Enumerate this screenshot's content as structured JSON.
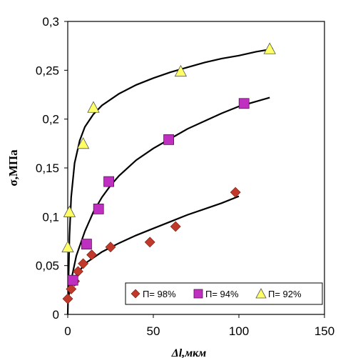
{
  "chart_data": {
    "type": "scatter",
    "title": "",
    "xlabel": "Δl,мкм",
    "ylabel": "σ,МПа",
    "xlim": [
      0,
      150
    ],
    "ylim": [
      0,
      0.3
    ],
    "x_ticks": [
      "0",
      "50",
      "100",
      "150"
    ],
    "y_ticks": [
      "0",
      "0,05",
      "0,1",
      "0,15",
      "0,2",
      "0,25",
      "0,3"
    ],
    "grid": false,
    "legend_position": "bottom-right",
    "series": [
      {
        "name": "П= 98%",
        "marker": "diamond",
        "color": "#c0392b",
        "points": [
          [
            0,
            0.016
          ],
          [
            2,
            0.026
          ],
          [
            4,
            0.034
          ],
          [
            6,
            0.044
          ],
          [
            9,
            0.052
          ],
          [
            14,
            0.061
          ],
          [
            25,
            0.069
          ],
          [
            48,
            0.074
          ],
          [
            63,
            0.09
          ],
          [
            98,
            0.125
          ]
        ],
        "trend": [
          [
            0,
            0.015
          ],
          [
            2,
            0.03
          ],
          [
            5,
            0.04
          ],
          [
            10,
            0.052
          ],
          [
            20,
            0.064
          ],
          [
            30,
            0.073
          ],
          [
            40,
            0.081
          ],
          [
            50,
            0.088
          ],
          [
            60,
            0.095
          ],
          [
            70,
            0.102
          ],
          [
            80,
            0.108
          ],
          [
            90,
            0.114
          ],
          [
            100,
            0.121
          ]
        ]
      },
      {
        "name": "П= 94%",
        "marker": "square",
        "color": "#c030c0",
        "points": [
          [
            3,
            0.035
          ],
          [
            11,
            0.072
          ],
          [
            18,
            0.108
          ],
          [
            24,
            0.136
          ],
          [
            59,
            0.179
          ],
          [
            103,
            0.216
          ]
        ],
        "trend": [
          [
            0,
            0.015
          ],
          [
            2,
            0.035
          ],
          [
            5,
            0.06
          ],
          [
            10,
            0.085
          ],
          [
            15,
            0.105
          ],
          [
            20,
            0.12
          ],
          [
            25,
            0.132
          ],
          [
            30,
            0.142
          ],
          [
            40,
            0.158
          ],
          [
            50,
            0.17
          ],
          [
            60,
            0.18
          ],
          [
            70,
            0.19
          ],
          [
            80,
            0.198
          ],
          [
            90,
            0.206
          ],
          [
            100,
            0.213
          ],
          [
            110,
            0.218
          ],
          [
            118,
            0.222
          ]
        ]
      },
      {
        "name": "П= 92%",
        "marker": "triangle",
        "color": "#ffff66",
        "points": [
          [
            0,
            0.069
          ],
          [
            1,
            0.105
          ],
          [
            9,
            0.175
          ],
          [
            15,
            0.212
          ],
          [
            66,
            0.249
          ],
          [
            118,
            0.272
          ]
        ],
        "trend": [
          [
            0,
            0.0
          ],
          [
            1,
            0.08
          ],
          [
            2,
            0.12
          ],
          [
            4,
            0.155
          ],
          [
            7,
            0.178
          ],
          [
            10,
            0.192
          ],
          [
            15,
            0.205
          ],
          [
            20,
            0.214
          ],
          [
            30,
            0.226
          ],
          [
            40,
            0.235
          ],
          [
            50,
            0.242
          ],
          [
            60,
            0.248
          ],
          [
            70,
            0.253
          ],
          [
            80,
            0.258
          ],
          [
            90,
            0.262
          ],
          [
            100,
            0.265
          ],
          [
            110,
            0.269
          ],
          [
            120,
            0.272
          ]
        ]
      }
    ]
  }
}
